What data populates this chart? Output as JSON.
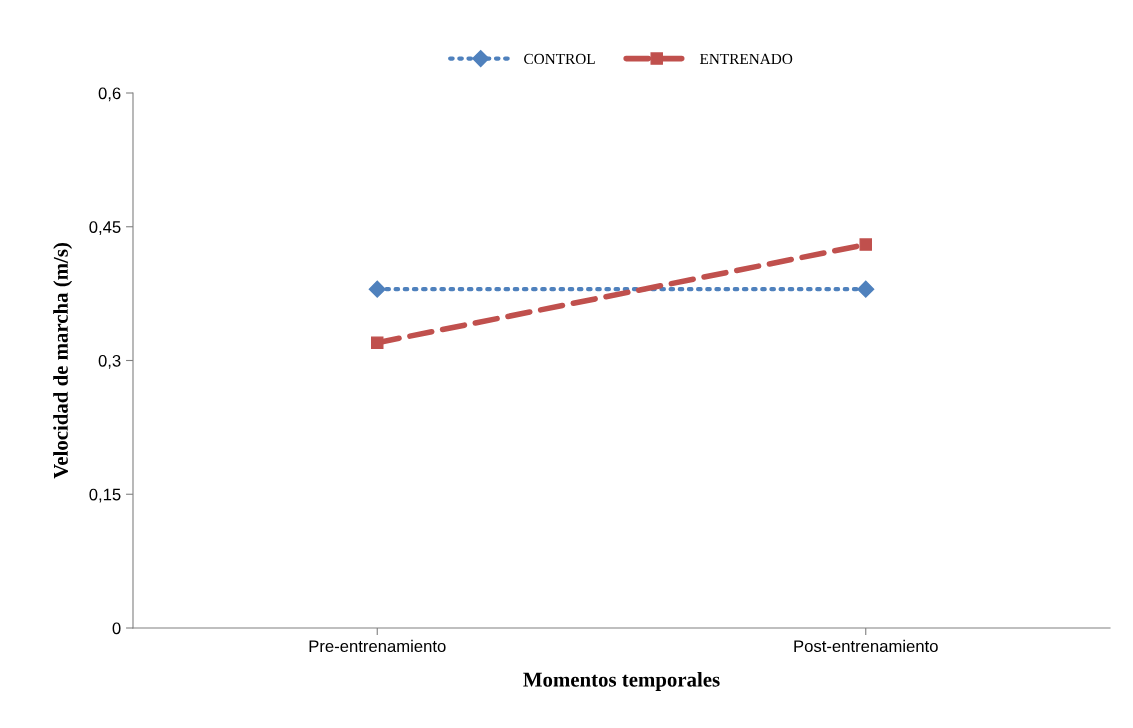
{
  "chart_data": {
    "type": "line",
    "xlabel": "Momentos temporales",
    "ylabel": "Velocidad de marcha (m/s)",
    "categories": [
      "Pre-entrenamiento",
      "Post-entrenamiento"
    ],
    "series": [
      {
        "name": "CONTROL",
        "color": "#4f81bd",
        "values": [
          0.38,
          0.38
        ],
        "marker": "diamond",
        "line_style": "dotted"
      },
      {
        "name": "ENTRENADO",
        "color": "#c0504d",
        "values": [
          0.32,
          0.43
        ],
        "marker": "square",
        "line_style": "dashed"
      }
    ],
    "ylim": [
      0,
      0.6
    ],
    "yticks": [
      0,
      {
        "value": 0.15,
        "label": "0,15"
      },
      {
        "value": 0.3,
        "label": "0,3"
      },
      {
        "value": 0.45,
        "label": "0,45"
      },
      {
        "value": 0.6,
        "label": "0,6"
      }
    ],
    "grid": false,
    "legend": "top"
  }
}
